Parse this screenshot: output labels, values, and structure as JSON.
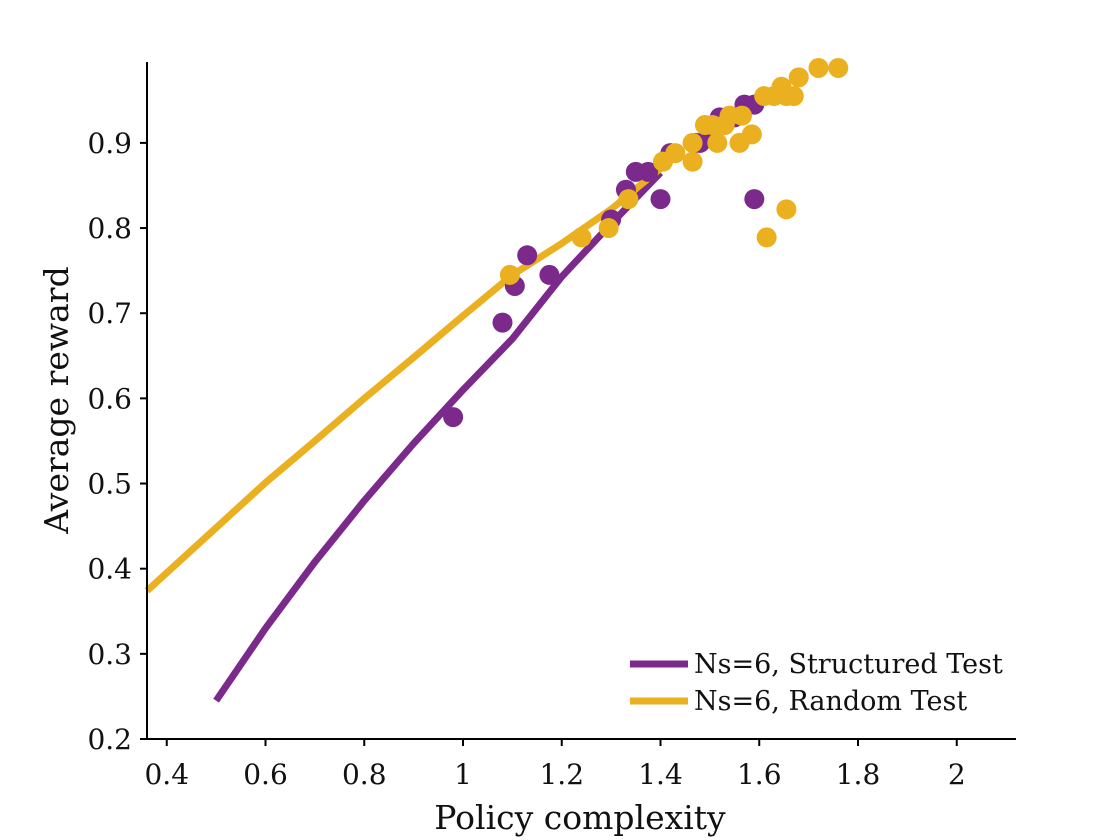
{
  "chart_data": {
    "type": "scatter",
    "title": "",
    "xlabel": "Policy complexity",
    "ylabel": "Average reward",
    "xlim": [
      0.36,
      2.12
    ],
    "ylim": [
      0.2,
      0.995
    ],
    "xticks": [
      0.4,
      0.6,
      0.8,
      1,
      1.2,
      1.4,
      1.6,
      1.8,
      2
    ],
    "xtick_labels": [
      "0.4",
      "0.6",
      "0.8",
      "1",
      "1.2",
      "1.4",
      "1.6",
      "1.8",
      "2"
    ],
    "yticks": [
      0.2,
      0.3,
      0.4,
      0.5,
      0.6,
      0.7,
      0.8,
      0.9
    ],
    "ytick_labels": [
      "0.2",
      "0.3",
      "0.4",
      "0.5",
      "0.6",
      "0.7",
      "0.8",
      "0.9"
    ],
    "grid": false,
    "legend_position": "bottom-right",
    "series": [
      {
        "name": "Ns=6, Structured Test",
        "color": "#7b2a8c",
        "points": [
          [
            0.98,
            0.578
          ],
          [
            1.08,
            0.689
          ],
          [
            1.105,
            0.732
          ],
          [
            1.13,
            0.768
          ],
          [
            1.175,
            0.745
          ],
          [
            1.3,
            0.81
          ],
          [
            1.33,
            0.845
          ],
          [
            1.35,
            0.866
          ],
          [
            1.375,
            0.866
          ],
          [
            1.4,
            0.834
          ],
          [
            1.42,
            0.888
          ],
          [
            1.47,
            0.9
          ],
          [
            1.48,
            0.9
          ],
          [
            1.5,
            0.91
          ],
          [
            1.52,
            0.93
          ],
          [
            1.55,
            0.93
          ],
          [
            1.57,
            0.945
          ],
          [
            1.59,
            0.945
          ],
          [
            1.59,
            0.834
          ]
        ],
        "fit": [
          [
            0.5,
            0.245
          ],
          [
            0.6,
            0.33
          ],
          [
            0.7,
            0.408
          ],
          [
            0.8,
            0.48
          ],
          [
            0.9,
            0.547
          ],
          [
            1.0,
            0.61
          ],
          [
            1.1,
            0.67
          ],
          [
            1.2,
            0.743
          ],
          [
            1.3,
            0.805
          ],
          [
            1.4,
            0.865
          ]
        ]
      },
      {
        "name": "Ns=6, Random Test",
        "color": "#ebb020",
        "points": [
          [
            1.095,
            0.745
          ],
          [
            1.24,
            0.789
          ],
          [
            1.295,
            0.8
          ],
          [
            1.335,
            0.834
          ],
          [
            1.405,
            0.878
          ],
          [
            1.43,
            0.888
          ],
          [
            1.465,
            0.9
          ],
          [
            1.465,
            0.878
          ],
          [
            1.49,
            0.921
          ],
          [
            1.505,
            0.921
          ],
          [
            1.515,
            0.9
          ],
          [
            1.53,
            0.921
          ],
          [
            1.54,
            0.932
          ],
          [
            1.56,
            0.9
          ],
          [
            1.565,
            0.932
          ],
          [
            1.585,
            0.91
          ],
          [
            1.61,
            0.955
          ],
          [
            1.615,
            0.789
          ],
          [
            1.63,
            0.955
          ],
          [
            1.645,
            0.966
          ],
          [
            1.655,
            0.955
          ],
          [
            1.655,
            0.822
          ],
          [
            1.67,
            0.955
          ],
          [
            1.68,
            0.977
          ],
          [
            1.72,
            0.988
          ],
          [
            1.76,
            0.988
          ]
        ],
        "fit": [
          [
            0.36,
            0.374
          ],
          [
            0.5,
            0.448
          ],
          [
            0.6,
            0.501
          ],
          [
            0.7,
            0.55
          ],
          [
            0.8,
            0.6
          ],
          [
            0.9,
            0.648
          ],
          [
            1.0,
            0.697
          ],
          [
            1.1,
            0.745
          ],
          [
            1.2,
            0.782
          ],
          [
            1.3,
            0.822
          ],
          [
            1.4,
            0.87
          ]
        ]
      }
    ]
  }
}
